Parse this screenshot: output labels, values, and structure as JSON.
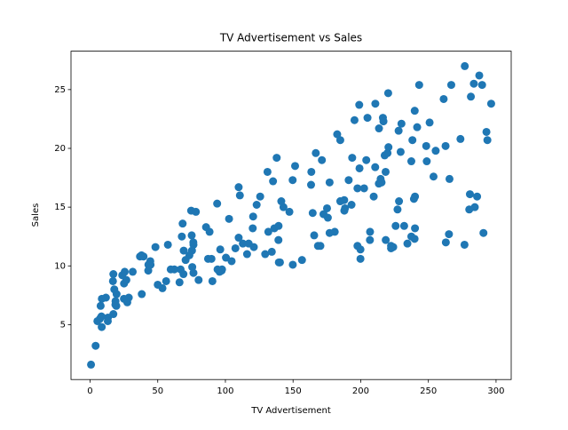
{
  "chart_data": {
    "type": "scatter",
    "title": "TV Advertisement vs Sales",
    "x_label": "TV Advertisement",
    "y_label": "Sales",
    "color": "#1f77b4",
    "xlim": [
      -14.1,
      311.2
    ],
    "ylim": [
      0.33,
      28.27
    ],
    "xticks": [
      0,
      50,
      100,
      150,
      200,
      250,
      300
    ],
    "yticks": [
      5,
      10,
      15,
      20,
      25
    ],
    "x": [
      230.1,
      44.5,
      17.2,
      151.5,
      180.8,
      8.7,
      57.5,
      120.2,
      8.6,
      199.8,
      66.1,
      214.7,
      23.8,
      97.5,
      204.1,
      195.4,
      67.8,
      281.4,
      69.2,
      147.3,
      218.4,
      237.4,
      13.2,
      228.3,
      62.3,
      262.9,
      142.9,
      240.1,
      248.8,
      70.6,
      292.9,
      112.9,
      97.2,
      265.6,
      95.7,
      290.7,
      266.9,
      74.7,
      43.1,
      228,
      202.5,
      177,
      293.6,
      206.9,
      25.1,
      175.1,
      89.7,
      239.9,
      227.2,
      66.9,
      199.8,
      100.4,
      216.4,
      182.6,
      262.7,
      198.9,
      7.3,
      136.2,
      210.8,
      210.7,
      53.5,
      261.3,
      239.3,
      102.7,
      131.1,
      69,
      31.5,
      139.3,
      237.4,
      216.8,
      199.1,
      109.8,
      26.8,
      129.4,
      213.4,
      16.9,
      27.5,
      120.5,
      5.4,
      116,
      76.4,
      239.8,
      75.3,
      68.4,
      213.5,
      193.2,
      76.3,
      110.7,
      88.3,
      109.8,
      134.3,
      28.6,
      217.7,
      250.9,
      107.4,
      163.3,
      197.6,
      184.9,
      289.7,
      135.2,
      222.4,
      296.4,
      280.2,
      187.9,
      238.2,
      137.9,
      25,
      90.4,
      13.1,
      255.4,
      225.8,
      241.7,
      175.7,
      209.6,
      78.2,
      75.1,
      139.2,
      76.4,
      125.7,
      19.4,
      141.3,
      18.8,
      224,
      123.1,
      229.5,
      87.2,
      7.8,
      80.2,
      220.3,
      59.6,
      0.7,
      265.2,
      8.4,
      219.8,
      36.9,
      48.3,
      25.6,
      273.7,
      43,
      184.9,
      73.4,
      193.7,
      220.5,
      104.6,
      96.2,
      140.3,
      240.1,
      243.2,
      38,
      44.7,
      280.7,
      121,
      197.6,
      171.3,
      187.8,
      4.1,
      93.9,
      149.8,
      11.7,
      131.7,
      172.5,
      85.7,
      188.4,
      163.5,
      117.2,
      234.5,
      17.9,
      206.8,
      215.4,
      284.3,
      50,
      164.5,
      19.6,
      168.4,
      222.4,
      276.9,
      248.4,
      170.2,
      276.7,
      165.6,
      156.6,
      218.5,
      56.2,
      287.6,
      253.8,
      205,
      139.5,
      191.1,
      286,
      18.7,
      39.5,
      75.5,
      17.2,
      166.8,
      149.7,
      38.2,
      94.2,
      177,
      283.6,
      232.1
    ],
    "values": [
      22.1,
      10.4,
      9.3,
      18.5,
      12.9,
      7.2,
      11.8,
      13.2,
      4.8,
      10.6,
      8.6,
      17.4,
      9.2,
      9.7,
      19,
      22.4,
      12.5,
      24.4,
      11.3,
      14.6,
      18,
      12.5,
      5.6,
      15.5,
      9.7,
      12,
      15,
      15.9,
      18.9,
      10.5,
      21.4,
      11.9,
      9.6,
      17.4,
      9.5,
      12.8,
      25.4,
      14.7,
      10.1,
      21.5,
      16.6,
      17.1,
      20.7,
      12.9,
      8.5,
      14.9,
      10.6,
      23.2,
      14.8,
      9.7,
      11.4,
      10.7,
      22.6,
      21.2,
      20.2,
      23.7,
      5.5,
      13.2,
      23.8,
      18.4,
      8.1,
      24.2,
      15.7,
      14,
      18,
      9.3,
      9.5,
      13.4,
      18.9,
      22.3,
      18.3,
      12.4,
      8.8,
      11,
      17,
      8.7,
      6.9,
      14.2,
      5.3,
      11,
      11.8,
      12.3,
      11.3,
      13.6,
      21.7,
      15.2,
      12,
      16,
      12.9,
      16.7,
      11.2,
      7.3,
      19.4,
      22.2,
      11.5,
      16.9,
      11.7,
      15.5,
      25.4,
      17.2,
      11.7,
      23.8,
      14.8,
      14.7,
      20.7,
      19.2,
      7.2,
      8.7,
      5.3,
      19.8,
      13.4,
      21.8,
      14.1,
      15.9,
      14.6,
      12.6,
      12.2,
      9.4,
      15.9,
      6.6,
      15.5,
      7,
      11.6,
      15.2,
      19.7,
      10.6,
      6.6,
      8.8,
      24.7,
      9.7,
      1.6,
      12.7,
      5.7,
      19.6,
      10.8,
      11.6,
      9.5,
      20.8,
      9.6,
      20.7,
      10.9,
      19.2,
      20.1,
      10.4,
      11.4,
      10.3,
      13.2,
      25.4,
      10.9,
      10.1,
      16.1,
      11.6,
      16.6,
      19,
      15.6,
      3.2,
      15.3,
      10.1,
      7.3,
      12.9,
      14.4,
      13.3,
      14.9,
      18,
      11.9,
      11.9,
      8,
      12.2,
      17.1,
      15,
      8.4,
      14.5,
      7.6,
      11.7,
      11.5,
      27,
      20.2,
      11.7,
      11.8,
      12.6,
      10.5,
      12.2,
      8.7,
      26.2,
      17.6,
      22.6,
      10.3,
      17.3,
      15.9,
      6.7,
      10.8,
      9.9,
      5.9,
      19.6,
      17.3,
      7.6,
      9.7,
      12.8,
      25.5,
      13.4
    ]
  }
}
